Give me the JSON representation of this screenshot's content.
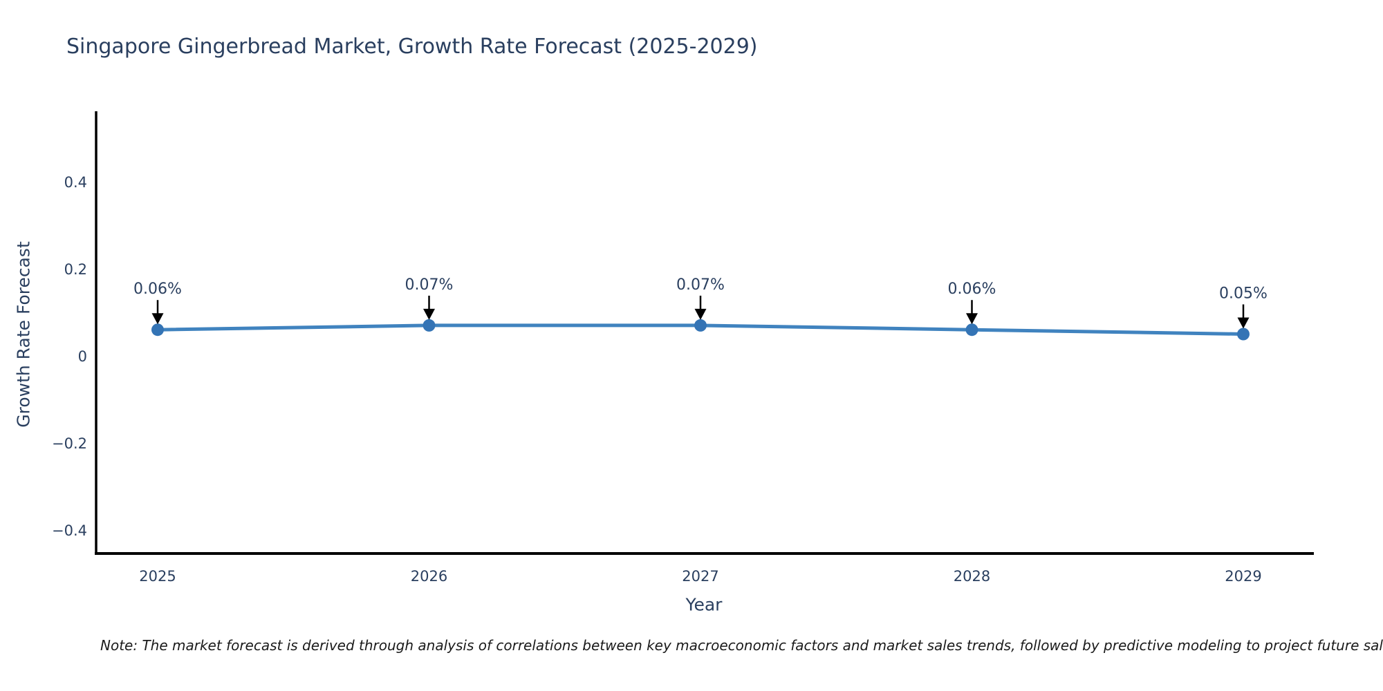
{
  "note": "Note: The market forecast is derived through analysis of correlations between key macroeconomic factors and market sales trends, followed by predictive modeling to project future sales.",
  "chart_data": {
    "type": "line",
    "title": "Singapore Gingerbread Market, Growth Rate Forecast (2025-2029)",
    "xlabel": "Year",
    "ylabel": "Growth Rate Forecast",
    "x": [
      2025,
      2026,
      2027,
      2028,
      2029
    ],
    "values": [
      0.06,
      0.07,
      0.07,
      0.06,
      0.05
    ],
    "point_labels": [
      "0.06%",
      "0.07%",
      "0.07%",
      "0.06%",
      "0.05%"
    ],
    "yticks": [
      0.4,
      0.2,
      0,
      -0.2,
      -0.4
    ],
    "ylim": [
      -0.45,
      0.56
    ],
    "grid": false,
    "legend": "none",
    "colors": {
      "line": "#4083bf",
      "marker": "#3474b5",
      "axis": "#000000",
      "tick_text": "#2a3f5f",
      "annotation_text": "#2a3f5f",
      "arrow": "#000000"
    }
  }
}
